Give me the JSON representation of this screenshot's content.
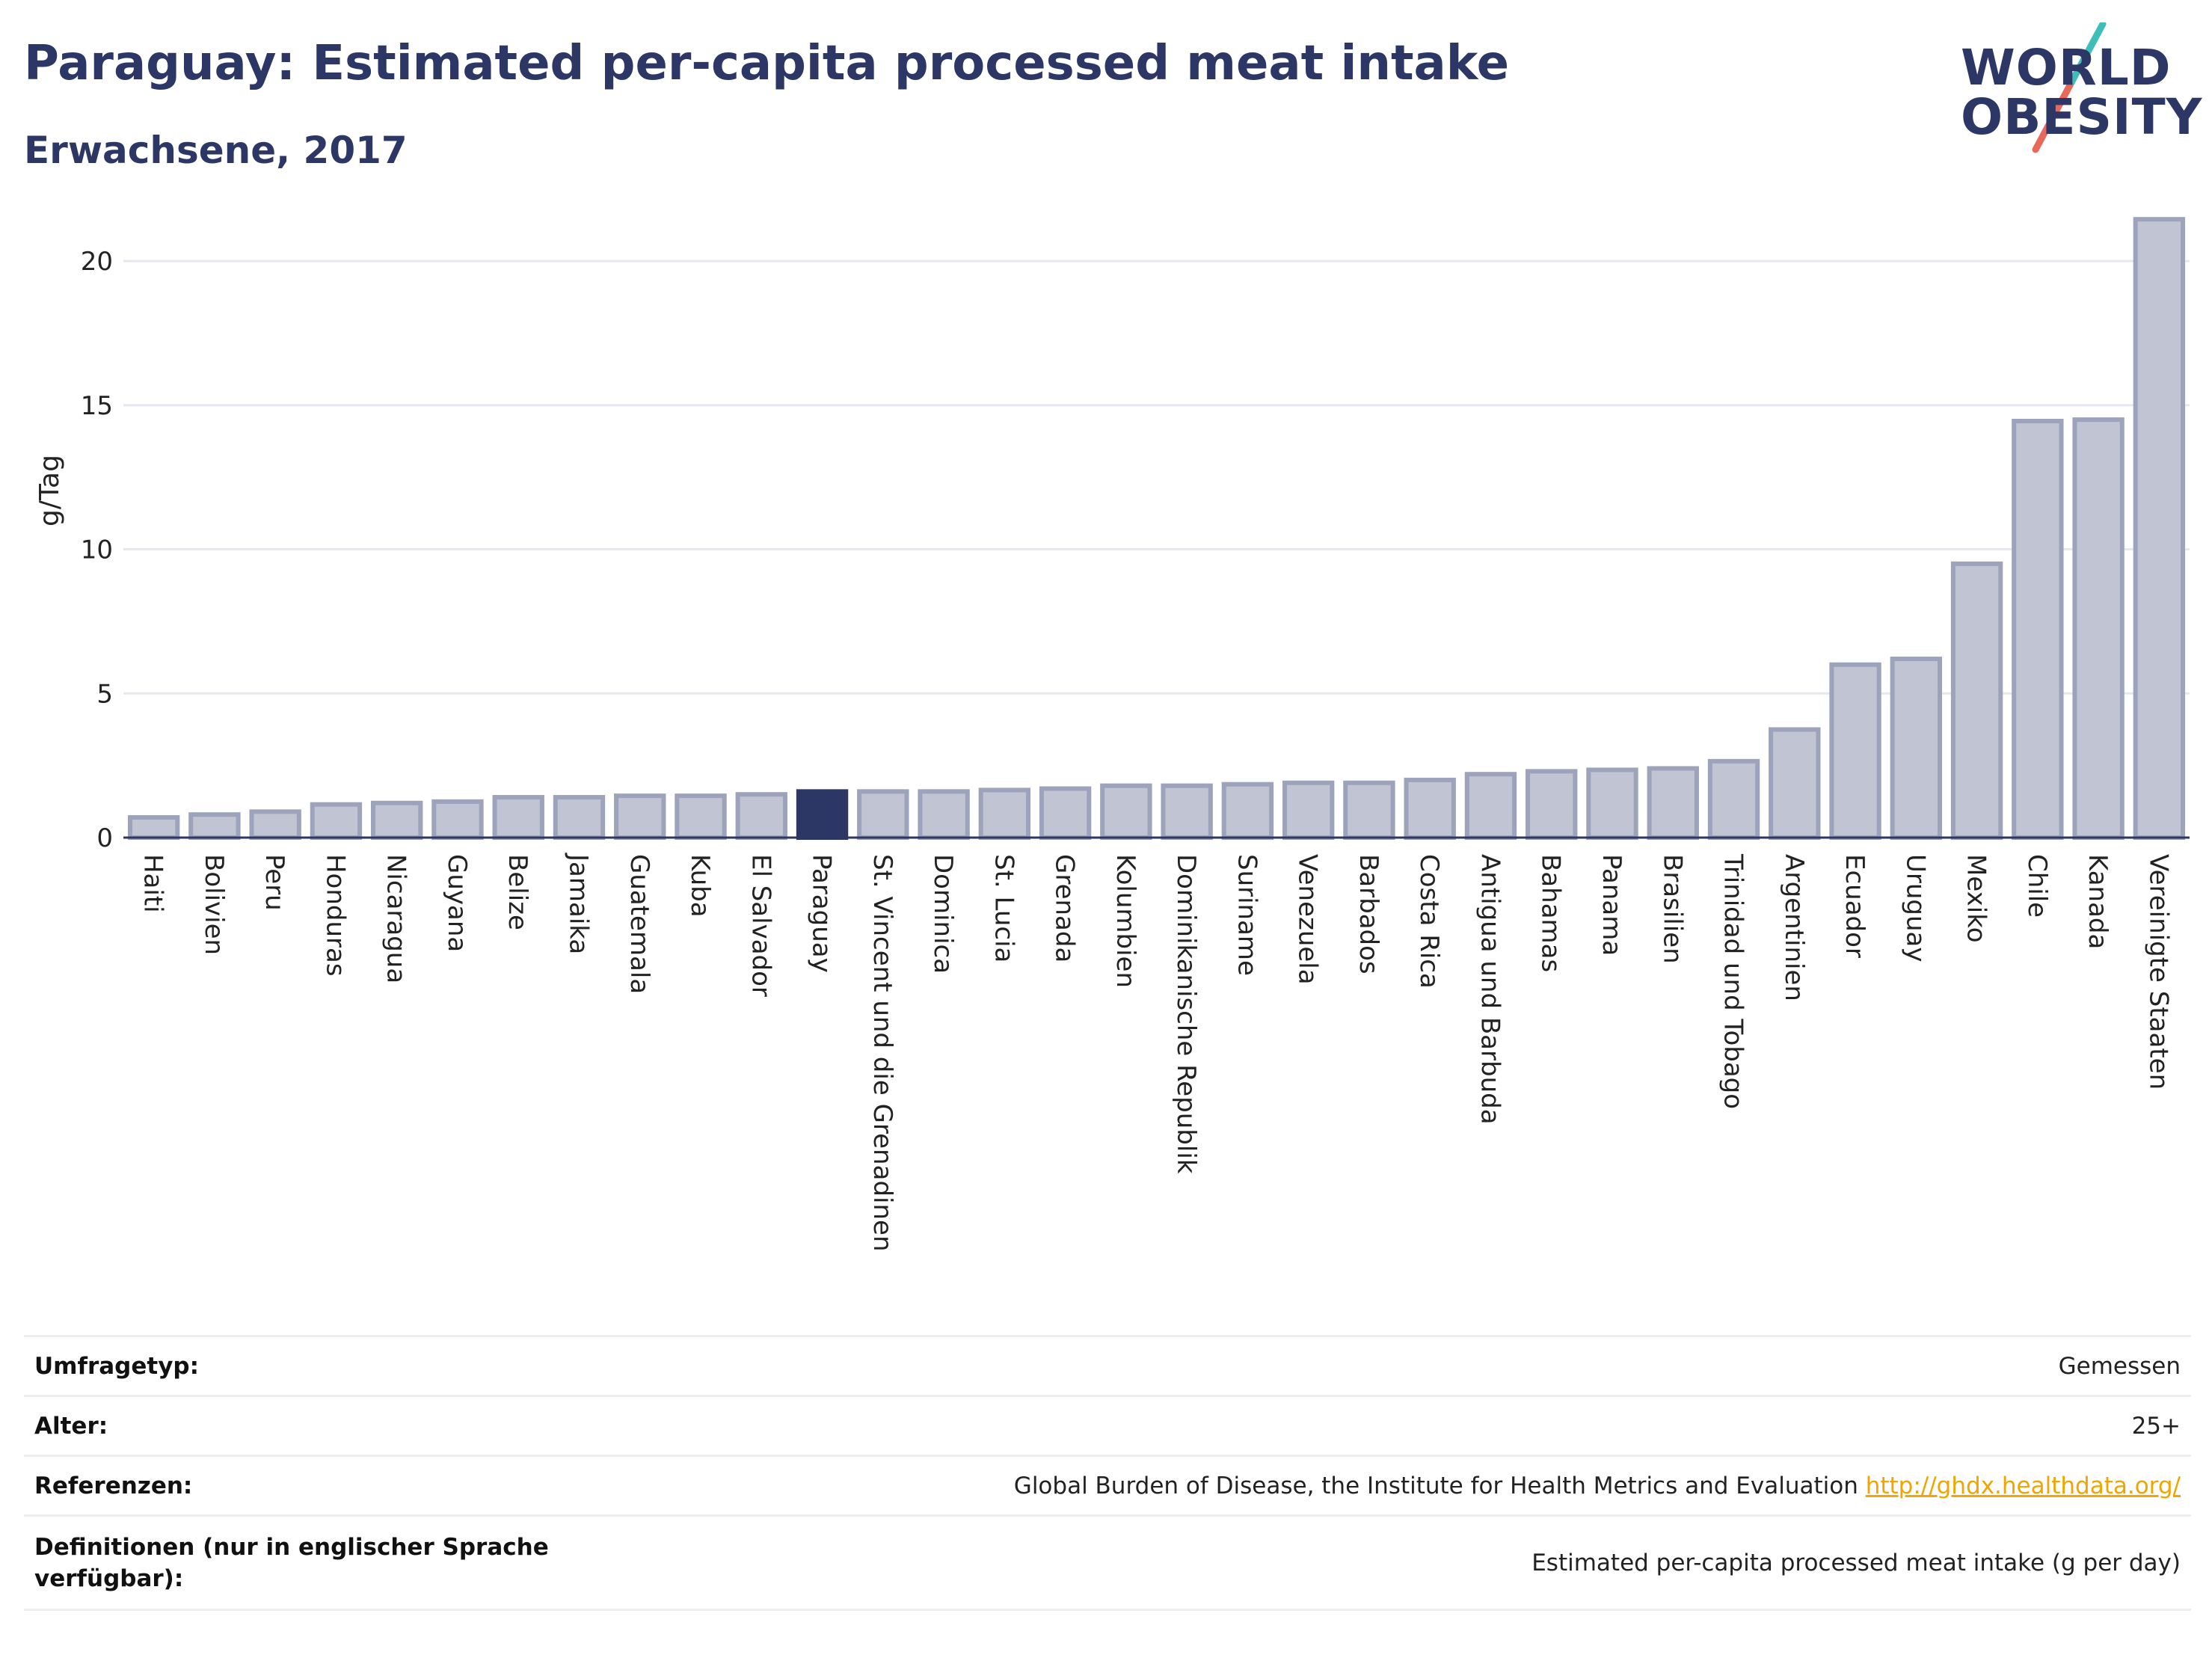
{
  "header": {
    "title": "Paraguay: Estimated per-capita processed meat intake",
    "subtitle": "Erwachsene, 2017"
  },
  "logo": {
    "line1": "WORLD",
    "line2": "OBESITY",
    "slash_colors": [
      "#3dbfb8",
      "#e8685a"
    ]
  },
  "colors": {
    "bar": "#c0c4d3",
    "bar_stroke": "#9da3bb",
    "highlight": "#2c3766",
    "grid": "#e6e8ee",
    "axis": "#2c3766",
    "link": "#f0a500"
  },
  "chart_data": {
    "type": "bar",
    "title": "Paraguay: Estimated per-capita processed meat intake",
    "subtitle": "Erwachsene, 2017",
    "xlabel": "",
    "ylabel": "g/Tag",
    "ylim": [
      0,
      22
    ],
    "yticks": [
      0,
      5,
      10,
      15,
      20
    ],
    "grid": true,
    "highlight": "Paraguay",
    "categories": [
      "Haiti",
      "Bolivien",
      "Peru",
      "Honduras",
      "Nicaragua",
      "Guyana",
      "Belize",
      "Jamaika",
      "Guatemala",
      "Kuba",
      "El Salvador",
      "Paraguay",
      "St. Vincent und die Grenadinen",
      "Dominica",
      "St. Lucia",
      "Grenada",
      "Kolumbien",
      "Dominikanische Republik",
      "Suriname",
      "Venezuela",
      "Barbados",
      "Costa Rica",
      "Antigua und Barbuda",
      "Bahamas",
      "Panama",
      "Brasilien",
      "Trinidad und Tobago",
      "Argentinien",
      "Ecuador",
      "Uruguay",
      "Mexiko",
      "Chile",
      "Kanada",
      "Vereinigte Staaten"
    ],
    "values": [
      0.7,
      0.8,
      0.9,
      1.15,
      1.2,
      1.25,
      1.4,
      1.4,
      1.45,
      1.45,
      1.5,
      1.6,
      1.6,
      1.6,
      1.65,
      1.7,
      1.8,
      1.8,
      1.85,
      1.9,
      1.9,
      2.0,
      2.2,
      2.3,
      2.35,
      2.4,
      2.65,
      3.75,
      6.0,
      6.2,
      9.5,
      14.45,
      14.5,
      21.45
    ]
  },
  "meta": {
    "rows": [
      {
        "label": "Umfragetyp:",
        "value": "Gemessen"
      },
      {
        "label": "Alter:",
        "value": "25+"
      },
      {
        "label": "Referenzen:",
        "value": "Global Burden of Disease, the Institute for Health Metrics and Evaluation",
        "link": "http://ghdx.healthdata.org/"
      },
      {
        "label": "Definitionen (nur in englischer Sprache verfügbar):",
        "value": "Estimated per-capita processed meat intake (g per day)"
      }
    ]
  }
}
